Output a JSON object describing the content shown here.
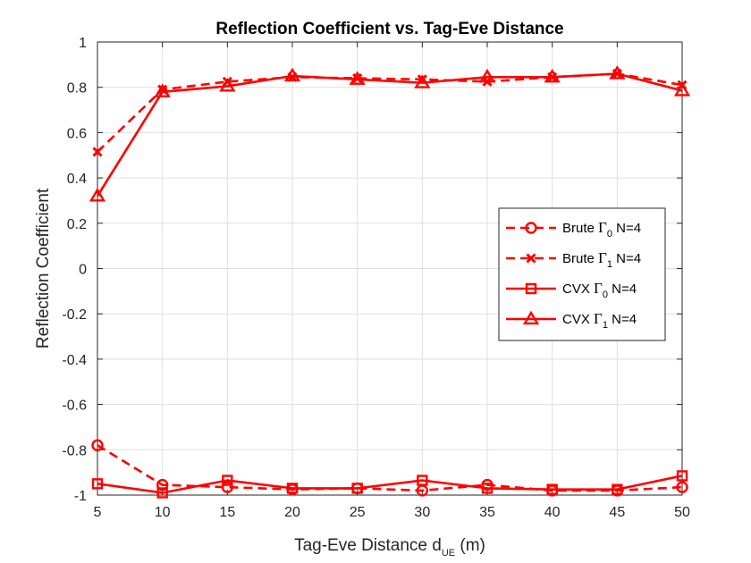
{
  "chart_data": {
    "type": "line",
    "title": "Reflection Coefficient vs. Tag-Eve Distance",
    "xlabel": {
      "main": "Tag-Eve Distance d",
      "sub": "UE",
      "suffix": " (m)"
    },
    "ylabel": "Reflection Coefficient",
    "xlim": [
      5,
      50
    ],
    "ylim": [
      -1,
      1
    ],
    "xticks": [
      5,
      10,
      15,
      20,
      25,
      30,
      35,
      40,
      45,
      50
    ],
    "yticks": [
      -1,
      -0.8,
      -0.6,
      -0.4,
      -0.2,
      0,
      0.2,
      0.4,
      0.6,
      0.8,
      1
    ],
    "grid": true,
    "legend_position": "right",
    "x": [
      5,
      10,
      15,
      20,
      25,
      30,
      35,
      40,
      45,
      50
    ],
    "series": [
      {
        "name_pre": "Brute ",
        "name_greek": "Γ",
        "name_sub": "0",
        "name_post": " N=4",
        "linestyle": "dashed",
        "marker": "circle",
        "color": "#ff0000",
        "values": [
          -0.78,
          -0.955,
          -0.965,
          -0.975,
          -0.97,
          -0.98,
          -0.955,
          -0.98,
          -0.98,
          -0.965
        ]
      },
      {
        "name_pre": "Brute ",
        "name_greek": "Γ",
        "name_sub": "1",
        "name_post": " N=4",
        "linestyle": "dashed",
        "marker": "x",
        "color": "#ff0000",
        "values": [
          0.515,
          0.79,
          0.825,
          0.845,
          0.84,
          0.835,
          0.825,
          0.845,
          0.86,
          0.81
        ]
      },
      {
        "name_pre": "CVX ",
        "name_greek": "Γ",
        "name_sub": "0",
        "name_post": " N=4",
        "linestyle": "solid",
        "marker": "square",
        "color": "#ff0000",
        "values": [
          -0.95,
          -0.99,
          -0.935,
          -0.97,
          -0.97,
          -0.935,
          -0.97,
          -0.975,
          -0.975,
          -0.915
        ]
      },
      {
        "name_pre": "CVX ",
        "name_greek": "Γ",
        "name_sub": "1",
        "name_post": " N=4",
        "linestyle": "solid",
        "marker": "triangle",
        "color": "#ff0000",
        "values": [
          0.32,
          0.78,
          0.805,
          0.85,
          0.835,
          0.82,
          0.845,
          0.845,
          0.86,
          0.785
        ]
      }
    ]
  },
  "colors": {
    "series": "#ff0000",
    "axis": "#262626",
    "grid": "#dfdfdf"
  }
}
